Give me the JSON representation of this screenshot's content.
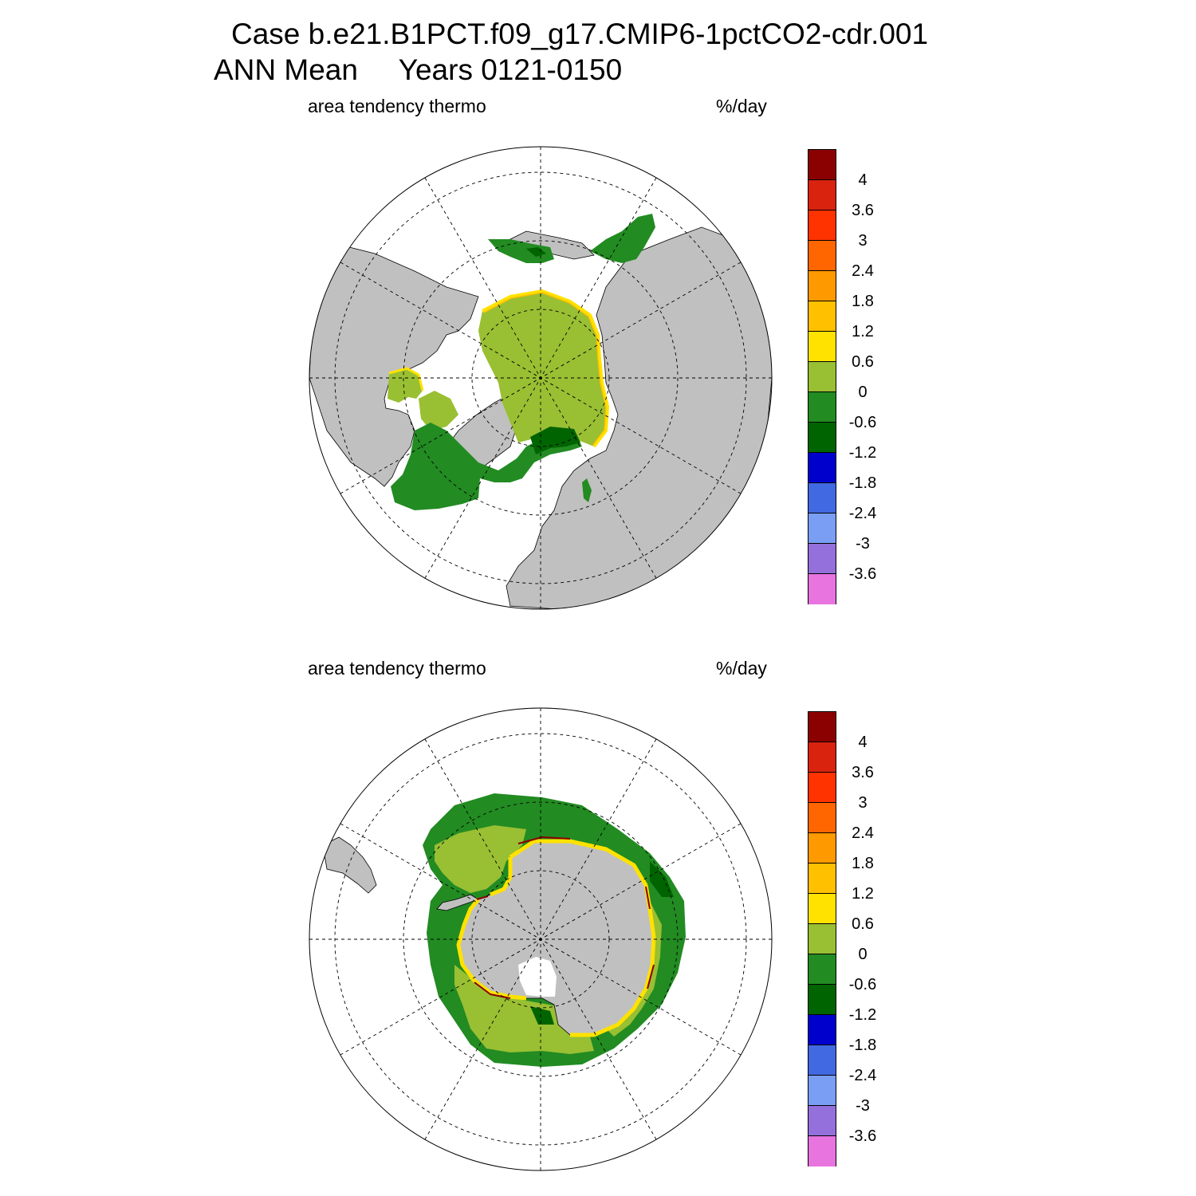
{
  "title": {
    "line1": "Case b.e21.B1PCT.f09_g17.CMIP6-1pctCO2-cdr.001",
    "line2": "ANN Mean     Years 0121-0150"
  },
  "panels": [
    {
      "id": "nh",
      "hemisphere": "north",
      "variable_label": "area tendency thermo",
      "units_label": "%/day"
    },
    {
      "id": "sh",
      "hemisphere": "south",
      "variable_label": "area tendency thermo",
      "units_label": "%/day"
    }
  ],
  "colorbar": {
    "colors": [
      "#8b0000",
      "#d9230f",
      "#ff3300",
      "#ff6600",
      "#ff9900",
      "#ffc000",
      "#ffe200",
      "#99bf33",
      "#228b22",
      "#006400",
      "#0000cd",
      "#4169e1",
      "#7b9ef5",
      "#9370db",
      "#e874e0"
    ],
    "labels": [
      "4",
      "3.6",
      "3",
      "2.4",
      "1.8",
      "1.2",
      "0.6",
      "0",
      "-0.6",
      "-1.2",
      "-1.8",
      "-2.4",
      "-3",
      "-3.6"
    ]
  },
  "map_colors": {
    "land": "#c0c0c0",
    "ocean": "#ffffff",
    "ice_positive_small": "#99bf33",
    "ice_negative_small": "#228b22",
    "ice_negative_mid": "#006400",
    "edge_yellow": "#ffe200",
    "edge_orange": "#ffc000",
    "edge_red": "#8b0000"
  }
}
